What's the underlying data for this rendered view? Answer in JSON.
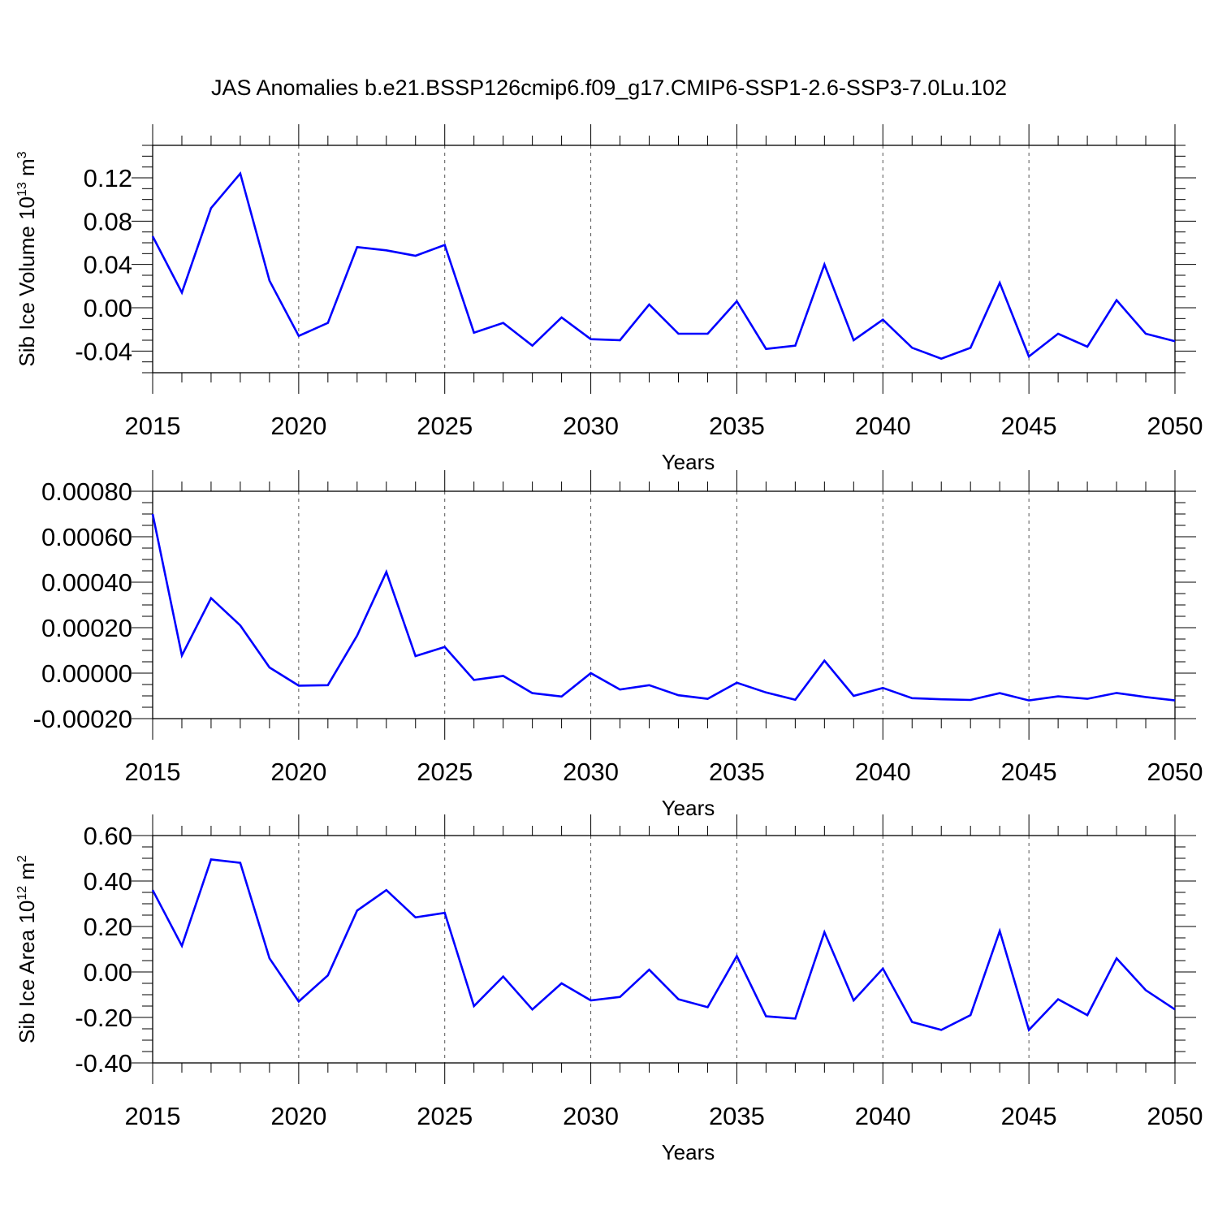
{
  "title": "JAS Anomalies b.e21.BSSP126cmip6.f09_g17.CMIP6-SSP1-2.6-SSP3-7.0Lu.102",
  "line_color": "#0000ff",
  "grid_style": "dashed vertical lines at labelled years",
  "chart_data": [
    {
      "type": "line",
      "ylabel": "Sib Ice Volume 10",
      "ylabel_exp": "13",
      "ylabel_unit": " m",
      "ylabel_unit_exp": "3",
      "xlabel": "Years",
      "xlim": [
        2015,
        2050
      ],
      "ylim": [
        -0.06,
        0.15
      ],
      "xticks": [
        "2015",
        "2020",
        "2025",
        "2030",
        "2035",
        "2040",
        "2045",
        "2050"
      ],
      "yticks": [
        {
          "v": 0.12,
          "label": "0.12"
        },
        {
          "v": 0.08,
          "label": "0.08"
        },
        {
          "v": 0.04,
          "label": "0.04"
        },
        {
          "v": 0.0,
          "label": "0.00"
        },
        {
          "v": -0.04,
          "label": "-0.04"
        }
      ],
      "x": [
        2015,
        2016,
        2017,
        2018,
        2019,
        2020,
        2021,
        2022,
        2023,
        2024,
        2025,
        2026,
        2027,
        2028,
        2029,
        2030,
        2031,
        2032,
        2033,
        2034,
        2035,
        2036,
        2037,
        2038,
        2039,
        2040,
        2041,
        2042,
        2043,
        2044,
        2045,
        2046,
        2047,
        2048,
        2049,
        2050
      ],
      "values": [
        0.066,
        0.014,
        0.092,
        0.124,
        0.025,
        -0.026,
        -0.014,
        0.056,
        0.053,
        0.048,
        0.058,
        -0.023,
        -0.014,
        -0.035,
        -0.009,
        -0.029,
        -0.03,
        0.003,
        -0.024,
        -0.024,
        0.006,
        -0.038,
        -0.035,
        0.04,
        -0.03,
        -0.011,
        -0.037,
        -0.047,
        -0.037,
        0.023,
        -0.045,
        -0.024,
        -0.036,
        0.007,
        -0.024,
        -0.031
      ]
    },
    {
      "type": "line",
      "ylabel": "",
      "xlabel": "Years",
      "xlim": [
        2015,
        2050
      ],
      "ylim": [
        -0.0002,
        0.0008
      ],
      "xticks": [
        "2015",
        "2020",
        "2025",
        "2030",
        "2035",
        "2040",
        "2045",
        "2050"
      ],
      "yticks": [
        {
          "v": 0.0008,
          "label": "0.00080"
        },
        {
          "v": 0.0006,
          "label": "0.00060"
        },
        {
          "v": 0.0004,
          "label": "0.00040"
        },
        {
          "v": 0.0002,
          "label": "0.00020"
        },
        {
          "v": 0.0,
          "label": "0.00000"
        },
        {
          "v": -0.0002,
          "label": "-0.00020"
        }
      ],
      "x": [
        2015,
        2016,
        2017,
        2018,
        2019,
        2020,
        2021,
        2022,
        2023,
        2024,
        2025,
        2026,
        2027,
        2028,
        2029,
        2030,
        2031,
        2032,
        2033,
        2034,
        2035,
        2036,
        2037,
        2038,
        2039,
        2040,
        2041,
        2042,
        2043,
        2044,
        2045,
        2046,
        2047,
        2048,
        2049,
        2050
      ],
      "values": [
        0.0007,
        7.8e-05,
        0.00033,
        0.00021,
        2.5e-05,
        -5.5e-05,
        -5.3e-05,
        0.000165,
        0.000445,
        7.5e-05,
        0.000115,
        -3e-05,
        -1.2e-05,
        -8.8e-05,
        -0.000103,
        0.0,
        -7.2e-05,
        -5.3e-05,
        -9.7e-05,
        -0.000113,
        -4.2e-05,
        -8.5e-05,
        -0.000117,
        5.5e-05,
        -0.0001,
        -6.5e-05,
        -0.00011,
        -0.000115,
        -0.000118,
        -8.8e-05,
        -0.00012,
        -0.000102,
        -0.000113,
        -8.7e-05,
        -0.000105,
        -0.00012
      ]
    },
    {
      "type": "line",
      "ylabel": "Sib Ice Area 10",
      "ylabel_exp": "12",
      "ylabel_unit": " m",
      "ylabel_unit_exp": "2",
      "xlabel": "Years",
      "xlim": [
        2015,
        2050
      ],
      "ylim": [
        -0.4,
        0.6
      ],
      "xticks": [
        "2015",
        "2020",
        "2025",
        "2030",
        "2035",
        "2040",
        "2045",
        "2050"
      ],
      "yticks": [
        {
          "v": 0.6,
          "label": "0.60"
        },
        {
          "v": 0.4,
          "label": "0.40"
        },
        {
          "v": 0.2,
          "label": "0.20"
        },
        {
          "v": 0.0,
          "label": "0.00"
        },
        {
          "v": -0.2,
          "label": "-0.20"
        },
        {
          "v": -0.4,
          "label": "-0.40"
        }
      ],
      "x": [
        2015,
        2016,
        2017,
        2018,
        2019,
        2020,
        2021,
        2022,
        2023,
        2024,
        2025,
        2026,
        2027,
        2028,
        2029,
        2030,
        2031,
        2032,
        2033,
        2034,
        2035,
        2036,
        2037,
        2038,
        2039,
        2040,
        2041,
        2042,
        2043,
        2044,
        2045,
        2046,
        2047,
        2048,
        2049,
        2050
      ],
      "values": [
        0.36,
        0.115,
        0.495,
        0.48,
        0.06,
        -0.13,
        -0.015,
        0.27,
        0.36,
        0.24,
        0.26,
        -0.15,
        -0.02,
        -0.165,
        -0.05,
        -0.125,
        -0.11,
        0.01,
        -0.12,
        -0.155,
        0.07,
        -0.195,
        -0.205,
        0.175,
        -0.125,
        0.015,
        -0.22,
        -0.255,
        -0.19,
        0.18,
        -0.255,
        -0.12,
        -0.19,
        0.06,
        -0.08,
        -0.165
      ]
    }
  ]
}
